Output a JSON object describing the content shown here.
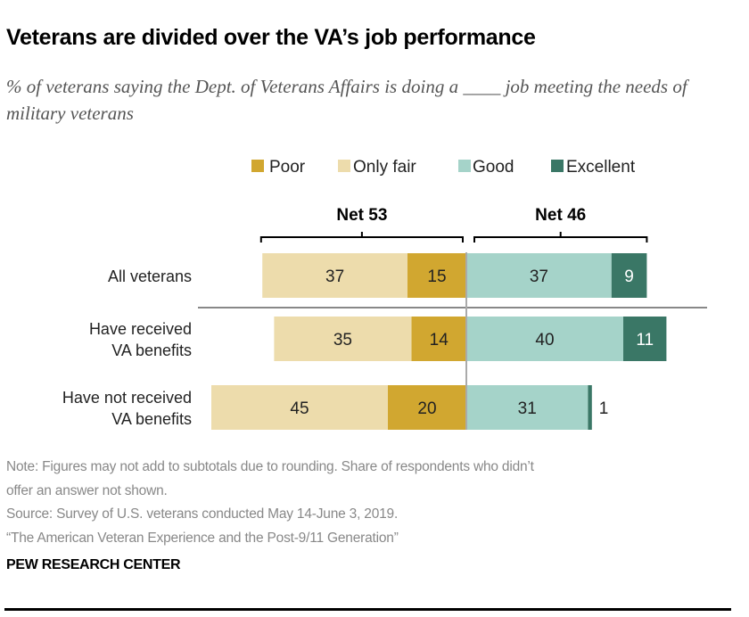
{
  "title": "Veterans are divided over the VA’s job performance",
  "subtitle": "% of veterans saying the Dept. of Veterans Affairs is doing a ____ job meeting the needs of military veterans",
  "chart_data": {
    "type": "bar",
    "orientation": "horizontal-diverging",
    "stacked": true,
    "categories": [
      [
        "All veterans"
      ],
      [
        "Have received",
        "VA benefits"
      ],
      [
        "Have not received",
        "VA benefits"
      ]
    ],
    "series": [
      {
        "name": "Poor",
        "side": "negative",
        "color": "#D1A730",
        "values": [
          15,
          14,
          20
        ]
      },
      {
        "name": "Only fair",
        "side": "negative",
        "color": "#EDDCAC",
        "values": [
          37,
          35,
          45
        ]
      },
      {
        "name": "Good",
        "side": "positive",
        "color": "#A5D3C9",
        "values": [
          37,
          40,
          31
        ]
      },
      {
        "name": "Excellent",
        "side": "positive",
        "color": "#3A7766",
        "values": [
          9,
          11,
          1
        ]
      }
    ],
    "nets": [
      {
        "label": "Net 53",
        "side": "negative",
        "value": 53
      },
      {
        "label": "Net 46",
        "side": "positive",
        "value": 46
      }
    ],
    "legend_placement": "top",
    "grid": false
  },
  "notes": {
    "note1": "Note: Figures may not add to subtotals due to rounding. Share of respondents who didn’t",
    "note2": "offer an answer not shown.",
    "source": "Source: Survey of U.S. veterans conducted May 14-June 3, 2019.",
    "report": "“The American Veteran Experience and the Post-9/11 Generation”"
  },
  "brand": "PEW RESEARCH CENTER"
}
